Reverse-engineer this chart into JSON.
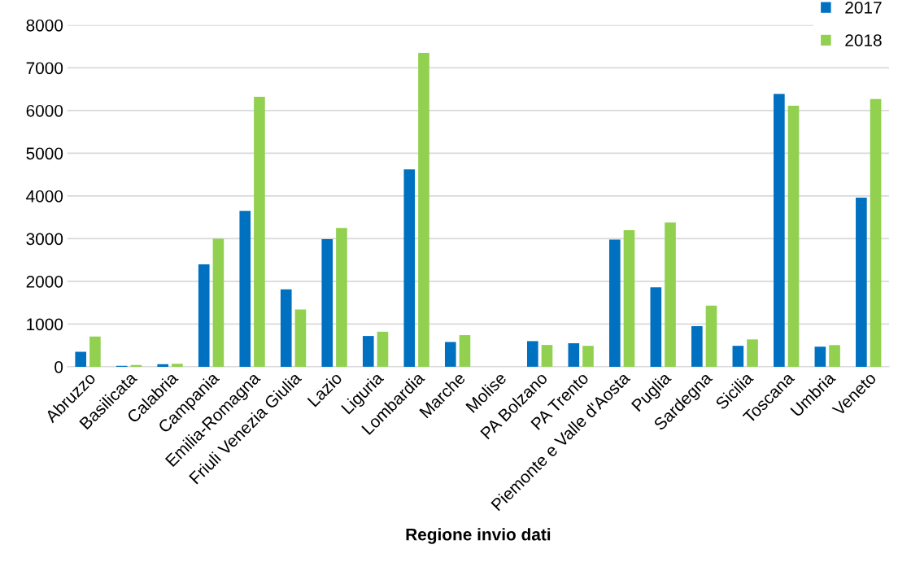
{
  "chart_data": {
    "type": "bar",
    "xlabel": "Regione invio dati",
    "categories": [
      "Abruzzo",
      "Basilicata",
      "Calabria",
      "Campania",
      "Emilia-Romagna",
      "Friuli Venezia Giulia",
      "Lazio",
      "Liguria",
      "Lombardia",
      "Marche",
      "Molise",
      "PA Bolzano",
      "PA Trento",
      "Piemonte e Valle d'Aosta",
      "Puglia",
      "Sardegna",
      "Sicilia",
      "Toscana",
      "Umbria",
      "Veneto"
    ],
    "series": [
      {
        "name": "2017",
        "color": "#0070c0",
        "values": [
          350,
          20,
          60,
          2400,
          3650,
          1810,
          2990,
          720,
          4620,
          580,
          null,
          600,
          550,
          2980,
          1860,
          950,
          490,
          6390,
          470,
          3960
        ]
      },
      {
        "name": "2018",
        "color": "#92d050",
        "values": [
          710,
          40,
          70,
          3000,
          6320,
          1340,
          3250,
          820,
          7350,
          740,
          null,
          510,
          490,
          3200,
          3380,
          1430,
          640,
          6110,
          510,
          6270
        ]
      }
    ],
    "ylim": [
      0,
      8000
    ],
    "yticks": [
      0,
      1000,
      2000,
      3000,
      4000,
      5000,
      6000,
      7000,
      8000
    ],
    "grid": "y",
    "legend": "top right"
  }
}
